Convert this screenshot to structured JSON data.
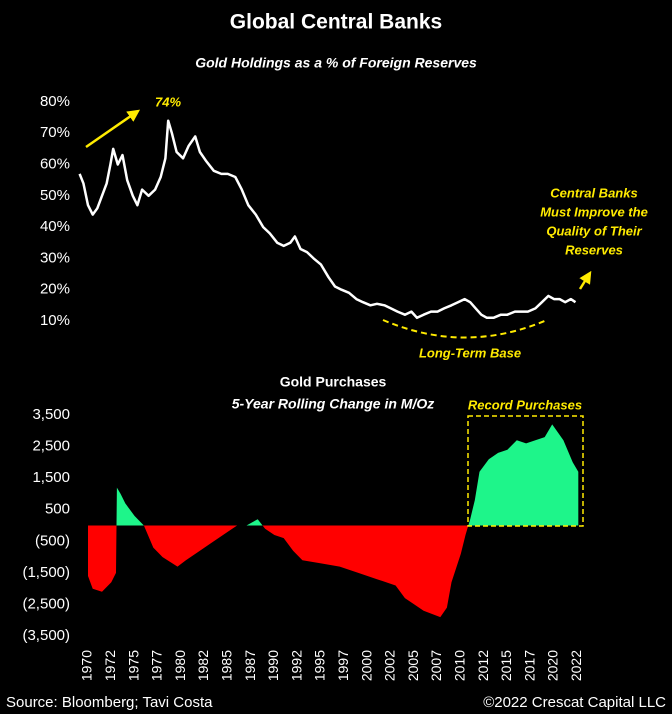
{
  "title": "Global Central Banks",
  "source": "Source: Bloomberg; Tavi Costa",
  "credit": "©2022 Crescat Capital LLC",
  "chart_data": [
    {
      "type": "line",
      "title": "Gold Holdings as a % of Foreign Reserves",
      "color": "#ffffff",
      "annotations": [
        "74%",
        "Long-Term Base"
      ],
      "note_lines": [
        "Central Banks",
        "Must Improve the",
        "Quality of Their",
        "Reserves"
      ],
      "x": [
        1969.1,
        1969.5,
        1970,
        1970.5,
        1971,
        1971.5,
        1972,
        1972.4,
        1972.7,
        1973.2,
        1973.7,
        1974.2,
        1974.8,
        1975.3,
        1975.8,
        1976.5,
        1977.2,
        1977.8,
        1978.3,
        1978.6,
        1979,
        1979.5,
        1980.2,
        1980.8,
        1981.5,
        1982,
        1982.7,
        1983.5,
        1984.3,
        1985,
        1985.8,
        1986.5,
        1987.2,
        1988,
        1988.8,
        1989.5,
        1990.3,
        1991,
        1991.7,
        1992.2,
        1992.8,
        1993.5,
        1994.2,
        1995,
        1995.8,
        1996.5,
        1997.2,
        1998,
        1998.8,
        1999.5,
        2000.3,
        2001,
        2001.8,
        2002.5,
        2003.2,
        2004,
        2004.7,
        2005.3,
        2006,
        2006.8,
        2007.5,
        2008.2,
        2009,
        2009.7,
        2010.4,
        2011,
        2011.6,
        2012.2,
        2012.8,
        2013.5,
        2014.3,
        2015,
        2015.8,
        2016.5,
        2017.2,
        2018,
        2018.7,
        2019.4,
        2020,
        2020.6,
        2021.2,
        2021.8,
        2022.3
      ],
      "values": [
        57,
        54,
        47,
        44,
        46,
        50,
        54,
        60,
        65,
        60,
        63,
        55,
        50,
        47,
        52,
        50,
        52,
        56,
        62,
        74,
        70,
        64,
        62,
        66,
        69,
        64,
        61,
        58,
        57,
        57,
        56,
        52,
        47,
        44,
        40,
        38,
        35,
        34,
        35,
        37,
        33,
        32,
        30,
        28,
        24,
        21,
        20,
        19,
        17,
        16,
        15,
        15.5,
        15,
        14,
        13,
        12,
        13,
        11,
        12,
        13,
        13,
        14,
        15,
        16,
        17,
        16,
        14,
        12,
        11,
        11,
        12,
        12,
        13,
        13,
        13,
        14,
        16,
        18,
        17,
        17,
        16,
        17,
        16
      ],
      "xlim": [
        1969,
        2023
      ],
      "ylim": [
        5,
        82
      ],
      "yticks": [
        {
          "value": 80,
          "label": "80%"
        },
        {
          "value": 70,
          "label": "70%"
        },
        {
          "value": 60,
          "label": "60%"
        },
        {
          "value": 50,
          "label": "50%"
        },
        {
          "value": 40,
          "label": "40%"
        },
        {
          "value": 30,
          "label": "30%"
        },
        {
          "value": 20,
          "label": "20%"
        },
        {
          "value": 10,
          "label": "10%"
        }
      ]
    },
    {
      "type": "area",
      "title": "Gold Purchases",
      "subtitle": "5-Year Rolling Change in M/Oz",
      "annotation": "Record Purchases",
      "positive_color": "#1ef58a",
      "negative_color": "#ff0000",
      "x": [
        1970,
        1970.5,
        1971.5,
        1972.5,
        1973,
        1973.1,
        1973.5,
        1974,
        1975,
        1976,
        1977,
        1978,
        1979.6,
        1980.5,
        1982,
        1983,
        1985,
        1986,
        1987,
        1988.2,
        1989,
        1990,
        1991,
        1992,
        1993,
        1995,
        1997,
        1999,
        2001,
        2003,
        2004,
        2005,
        2006,
        2007.8,
        2008.5,
        2009,
        2010,
        2010.5,
        2011,
        2011.5,
        2012,
        2013,
        2014,
        2015,
        2016,
        2017,
        2018,
        2019,
        2019.8,
        2021,
        2022,
        2022.6
      ],
      "values": [
        -1600,
        -2000,
        -2100,
        -1800,
        -1500,
        1200,
        1000,
        700,
        300,
        0,
        -700,
        -1000,
        -1300,
        -1100,
        -800,
        -600,
        -200,
        0,
        0,
        200,
        -100,
        -300,
        -400,
        -800,
        -1100,
        -1200,
        -1300,
        -1500,
        -1700,
        -1900,
        -2300,
        -2500,
        -2700,
        -2900,
        -2600,
        -1800,
        -900,
        -300,
        200,
        800,
        1700,
        2100,
        2300,
        2400,
        2700,
        2600,
        2700,
        2800,
        3200,
        2700,
        2000,
        1700
      ],
      "xlim": [
        1969,
        2023
      ],
      "ylim": [
        -3800,
        3800
      ],
      "yticks": [
        {
          "value": 3500,
          "label": "3,500"
        },
        {
          "value": 2500,
          "label": "2,500"
        },
        {
          "value": 1500,
          "label": "1,500"
        },
        500,
        {
          "value": -500,
          "label": "(500)"
        },
        {
          "value": -1500,
          "label": "(1,500)"
        },
        {
          "value": -2500,
          "label": "(2,500)"
        },
        {
          "value": -3500,
          "label": "(3,500)"
        }
      ],
      "xticks": [
        1970,
        {
          "value": 1972.5,
          "label": "1972"
        },
        1975,
        {
          "value": 1977.5,
          "label": "1977"
        },
        1980,
        {
          "value": 1982.5,
          "label": "1982"
        },
        1985,
        {
          "value": 1987.5,
          "label": "1987"
        },
        1990,
        {
          "value": 1992.5,
          "label": "1992"
        },
        1995,
        {
          "value": 1997.5,
          "label": "1997"
        },
        2000,
        {
          "value": 2002.5,
          "label": "2002"
        },
        2005,
        {
          "value": 2007.5,
          "label": "2007"
        },
        2010,
        {
          "value": 2012.5,
          "label": "2012"
        },
        2015,
        {
          "value": 2017.5,
          "label": "2017"
        },
        2020,
        {
          "value": 2022.5,
          "label": "2022"
        }
      ]
    }
  ]
}
